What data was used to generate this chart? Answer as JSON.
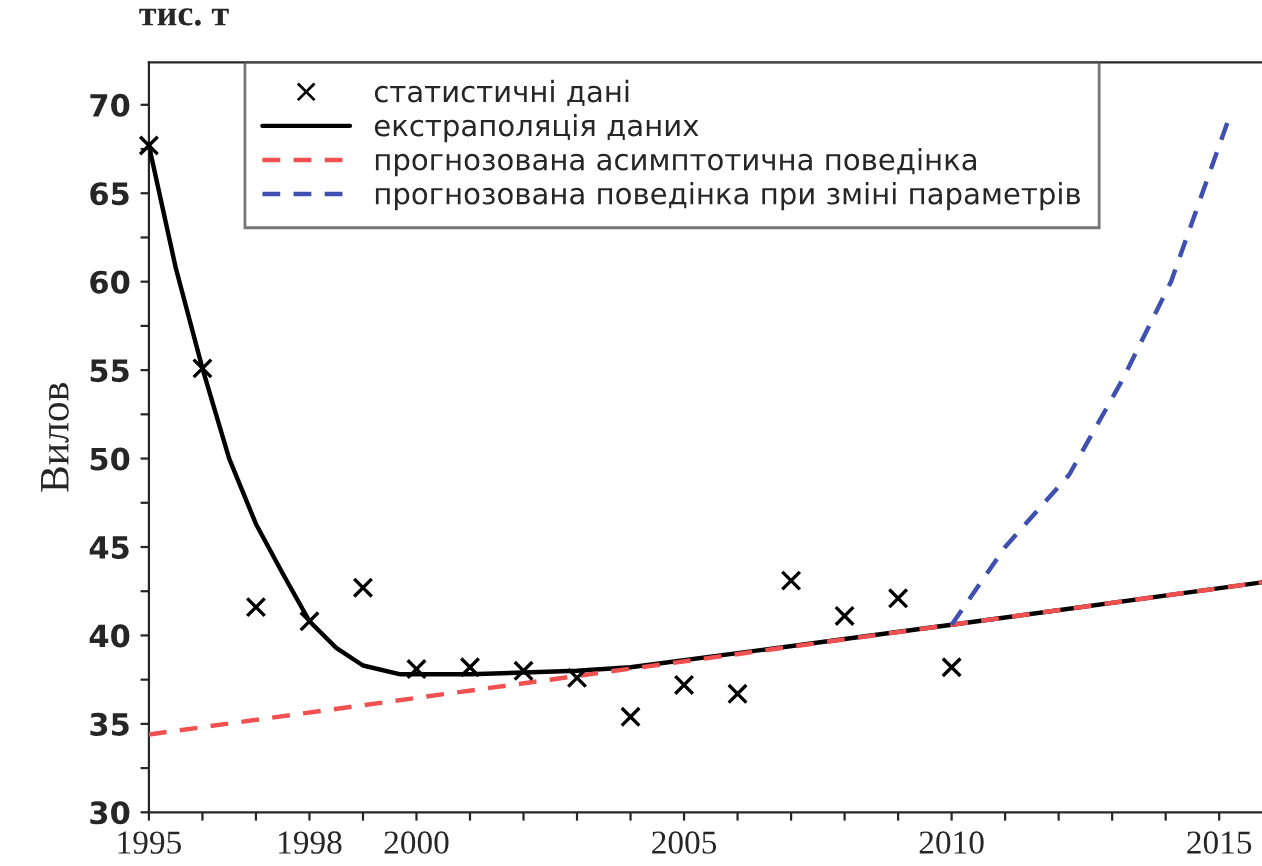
{
  "chart_data": {
    "type": "line",
    "ylabel": "Вилов",
    "annotations": [
      "тис. т"
    ],
    "xlim": [
      1995,
      2015.8
    ],
    "ylim": [
      30,
      72.4
    ],
    "xticks": [
      1995,
      {
        "value": 1996,
        "label": null
      },
      {
        "value": 1997,
        "label": null
      },
      1998,
      {
        "value": 1999,
        "label": null
      },
      2000,
      {
        "value": 2001,
        "label": null
      },
      {
        "value": 2002,
        "label": null
      },
      {
        "value": 2003,
        "label": null
      },
      {
        "value": 2004,
        "label": null
      },
      2005,
      {
        "value": 2006,
        "label": null
      },
      {
        "value": 2007,
        "label": null
      },
      {
        "value": 2008,
        "label": null
      },
      {
        "value": 2009,
        "label": null
      },
      2010,
      {
        "value": 2011,
        "label": null
      },
      {
        "value": 2012,
        "label": null
      },
      {
        "value": 2013,
        "label": null
      },
      {
        "value": 2014,
        "label": null
      },
      2015
    ],
    "yticks": [
      30,
      {
        "value": 32.5,
        "label": null
      },
      35,
      {
        "value": 37.5,
        "label": null
      },
      40,
      {
        "value": 42.5,
        "label": null
      },
      45,
      {
        "value": 47.5,
        "label": null
      },
      50,
      {
        "value": 52.5,
        "label": null
      },
      55,
      {
        "value": 57.5,
        "label": null
      },
      60,
      {
        "value": 62.5,
        "label": null
      },
      65,
      {
        "value": 67.5,
        "label": null
      },
      70
    ],
    "grid": false,
    "legend": "top",
    "series": [
      {
        "name": "статистичні дані",
        "type": "scatter",
        "marker": "cross",
        "color": "#000000",
        "x": [
          1995,
          1996,
          1997,
          1998,
          1999,
          2000,
          2001,
          2002,
          2003,
          2004,
          2005,
          2006,
          2007,
          2008,
          2009,
          2010
        ],
        "values": [
          67.7,
          55.1,
          41.6,
          40.8,
          42.7,
          38.1,
          38.2,
          38.0,
          37.6,
          35.4,
          37.2,
          36.7,
          43.1,
          41.1,
          42.1,
          38.2
        ]
      },
      {
        "name": "екстраполяція даних",
        "line_style": "solid",
        "color": "#000000",
        "x": [
          1995,
          1995.5,
          1996,
          1996.5,
          1997,
          1997.5,
          1998,
          1998.5,
          1999,
          1999.7,
          2001,
          2002,
          2003,
          2004,
          2010,
          2015.8
        ],
        "values": [
          67.7,
          60.8,
          55.1,
          50.0,
          46.3,
          43.5,
          40.8,
          39.3,
          38.3,
          37.8,
          37.8,
          37.9,
          38.0,
          38.2,
          40.6,
          43.0
        ]
      },
      {
        "name": "прогнозована асимптотична поведінка",
        "line_style": "dashed",
        "color": "#f05050",
        "x": [
          1995,
          2015.8
        ],
        "values": [
          34.4,
          43.0
        ]
      },
      {
        "name": "прогнозована поведінка при зміні параметрів",
        "line_style": "dashed",
        "color": "#4050b0",
        "x": [
          2010,
          2011,
          2012.2,
          2013.2,
          2014.1,
          2015.2
        ],
        "values": [
          40.6,
          45.0,
          49.1,
          54.5,
          60.0,
          69.4
        ]
      }
    ]
  }
}
